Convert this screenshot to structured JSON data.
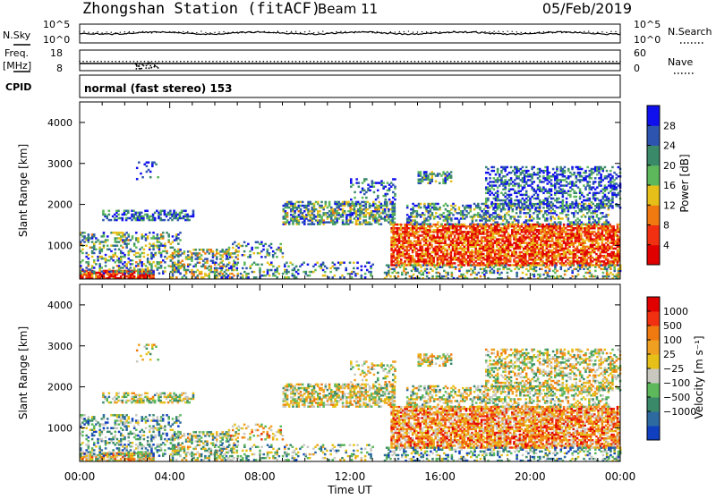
{
  "header": {
    "station": "Zhongshan Station (fitACF)",
    "beam": "Beam 11",
    "date": "05/Feb/2019"
  },
  "noise_panel": {
    "left_label": "N.Sky",
    "left_top": "10^5",
    "left_bottom": "10^0",
    "right_label": "N.Search",
    "right_top": "10^5",
    "right_bottom": "10^0"
  },
  "freq_panel": {
    "left_label_1": "Freq.",
    "left_label_2": "[MHz]",
    "left_top": "18",
    "left_bottom": "8",
    "right_label": "Nave",
    "right_top": "60",
    "right_bottom": "0",
    "freq_level": 11.5,
    "nave_level": 27
  },
  "cpid": {
    "label": "CPID",
    "text": "normal (fast stereo) 153"
  },
  "axes": {
    "ylabel": "Slant Range [km]",
    "xlabel": "Time UT",
    "yticks": [
      "1000",
      "2000",
      "3000",
      "4000"
    ],
    "ytick_values": [
      1000,
      2000,
      3000,
      4000
    ],
    "xticks": [
      "00:00",
      "04:00",
      "08:00",
      "12:00",
      "16:00",
      "20:00",
      "00:00"
    ],
    "xtick_hours": [
      0,
      4,
      8,
      12,
      16,
      20,
      24
    ]
  },
  "chart_data": [
    {
      "type": "heatmap",
      "name": "power",
      "xlabel": "Time UT",
      "ylabel": "Slant Range [km]",
      "xlim": [
        0,
        24
      ],
      "ylim": [
        180,
        4500
      ],
      "colorbar_label": "Power [dB]",
      "colorbar_ticks": [
        "4",
        "8",
        "12",
        "16",
        "20",
        "24",
        "28"
      ],
      "colorbar_values": [
        4,
        8,
        12,
        16,
        20,
        24,
        28
      ],
      "colorbar_range": [
        0,
        32
      ],
      "colors": [
        "#1010ee",
        "#2d55b0",
        "#3a8a6a",
        "#5cb85a",
        "#e6c018",
        "#f07a10",
        "#f03010",
        "#e00000"
      ]
    },
    {
      "type": "heatmap",
      "name": "velocity",
      "xlabel": "Time UT",
      "ylabel": "Slant Range [km]",
      "xlim": [
        0,
        24
      ],
      "ylim": [
        180,
        4500
      ],
      "colorbar_label": "Velocity [m s⁻¹]",
      "colorbar_ticks": [
        "1000",
        "500",
        "100",
        "25",
        "−25",
        "−100",
        "−500",
        "−1000"
      ],
      "colors": [
        "#1040c0",
        "#2d6aa0",
        "#3a8a6a",
        "#5cb85a",
        "#c8c8c0",
        "#e6c018",
        "#f0a020",
        "#f07a10",
        "#f03010",
        "#e00000"
      ]
    }
  ]
}
